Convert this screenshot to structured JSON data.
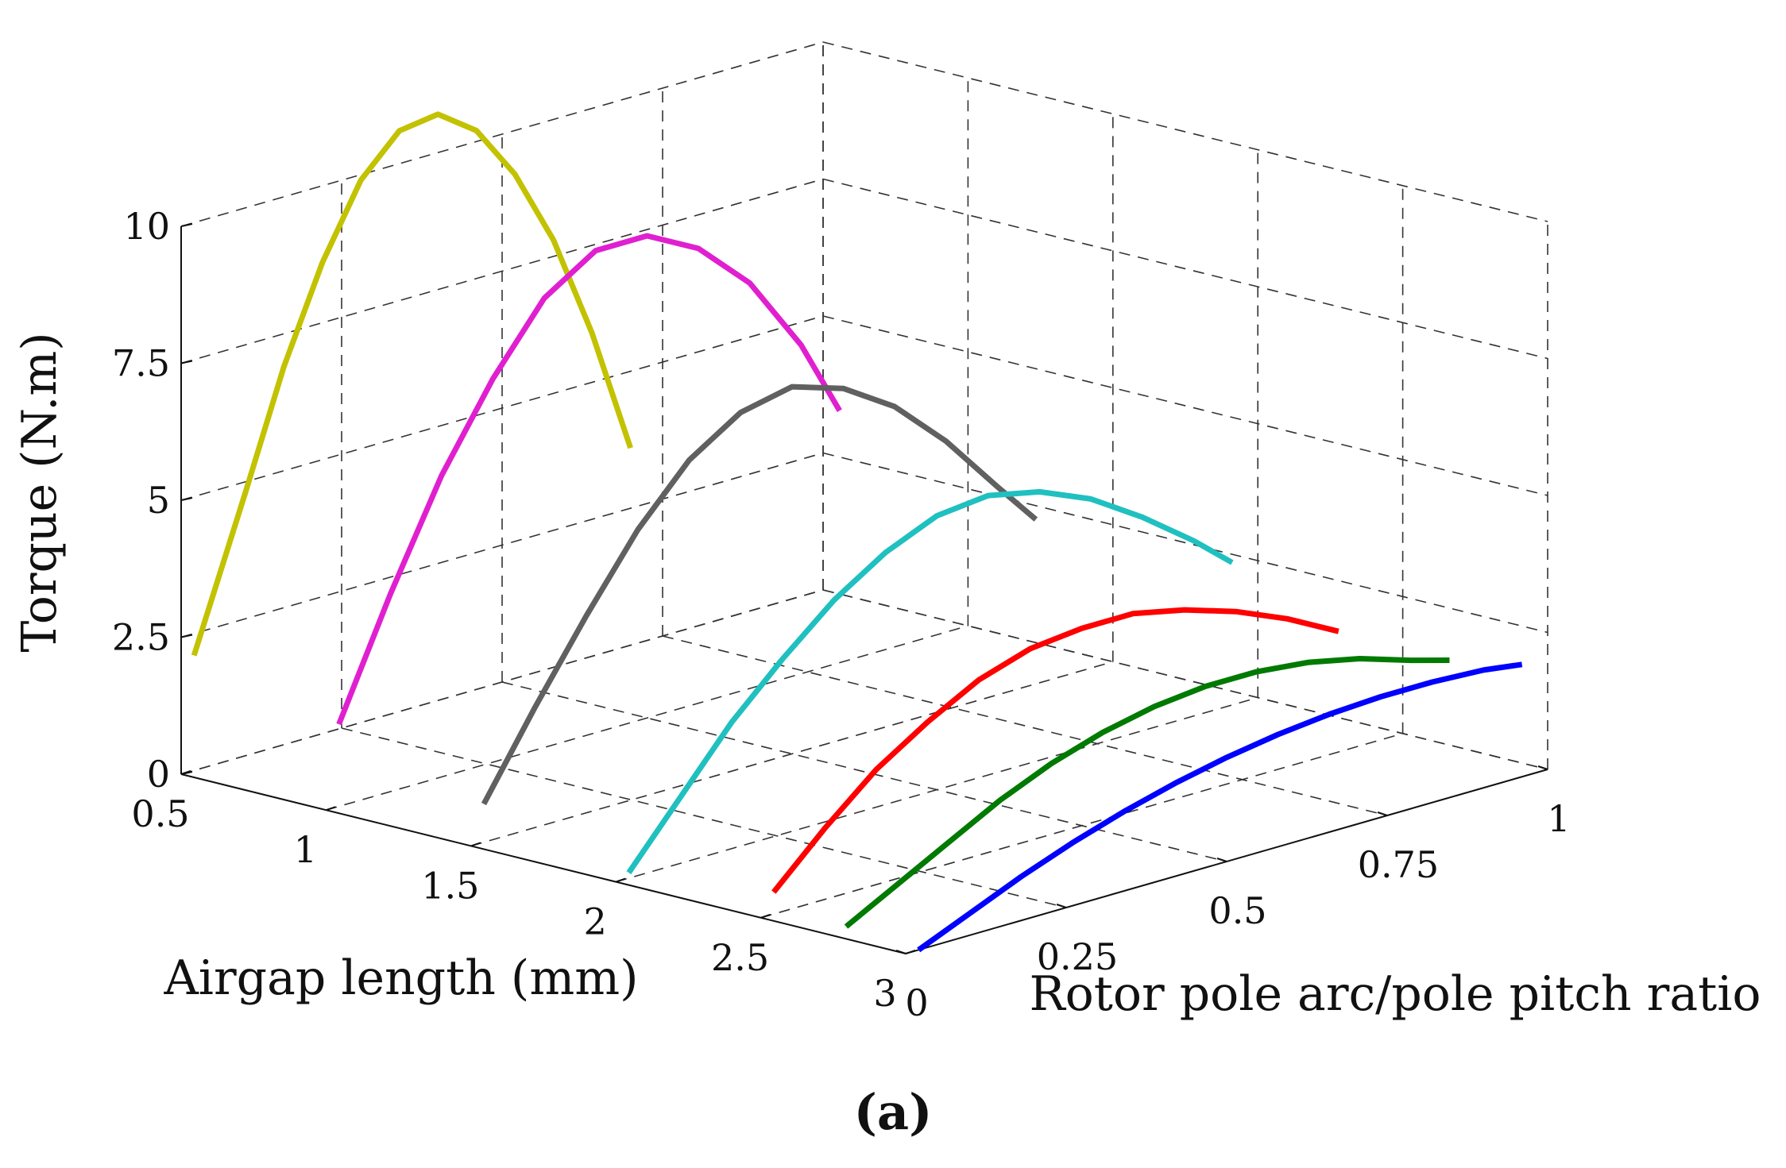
{
  "chart_data": {
    "type": "line3d",
    "panel_label": "(a)",
    "zlabel": "Torque (N.m)",
    "xlabel": "Airgap length (mm)",
    "ylabel": "Rotor pole arc/pole pitch ratio",
    "xlim": [
      0.5,
      3
    ],
    "ylim": [
      0,
      1
    ],
    "zlim": [
      0,
      10
    ],
    "xticks": [
      "0.5",
      "1",
      "1.5",
      "2",
      "2.5",
      "3"
    ],
    "yticks": [
      "0",
      "0.25",
      "0.5",
      "0.75",
      "1"
    ],
    "zticks": [
      "0",
      "2.5",
      "5",
      "7.5",
      "10"
    ],
    "grid": true,
    "series": [
      {
        "name": "yellow",
        "color": "#c2c200",
        "x": 0.5,
        "y": [
          0.02,
          0.1,
          0.16,
          0.22,
          0.28,
          0.34,
          0.4,
          0.46,
          0.52,
          0.58,
          0.64,
          0.7
        ],
        "z": [
          2.1,
          4.8,
          6.9,
          8.6,
          9.9,
          10.6,
          10.7,
          10.2,
          9.2,
          7.8,
          5.9,
          3.6
        ]
      },
      {
        "name": "magenta",
        "color": "#e020d0",
        "x": 1.0,
        "y": [
          0.02,
          0.1,
          0.18,
          0.26,
          0.34,
          0.42,
          0.5,
          0.58,
          0.66,
          0.74,
          0.8
        ],
        "z": [
          1.5,
          3.6,
          5.5,
          7.0,
          8.2,
          8.8,
          8.8,
          8.3,
          7.4,
          6.0,
          4.6
        ]
      },
      {
        "name": "gray",
        "color": "#606060",
        "x": 1.5,
        "y": [
          0.02,
          0.1,
          0.18,
          0.26,
          0.34,
          0.42,
          0.5,
          0.58,
          0.66,
          0.74,
          0.82,
          0.88
        ],
        "z": [
          0.7,
          2.2,
          3.6,
          4.9,
          5.9,
          6.5,
          6.7,
          6.4,
          5.8,
          4.9,
          3.8,
          3.0
        ]
      },
      {
        "name": "cyan",
        "color": "#20c0c0",
        "x": 2.0,
        "y": [
          0.02,
          0.1,
          0.18,
          0.26,
          0.34,
          0.42,
          0.5,
          0.58,
          0.66,
          0.74,
          0.82,
          0.9,
          0.96
        ],
        "z": [
          0.1,
          1.2,
          2.3,
          3.2,
          4.0,
          4.6,
          5.0,
          5.1,
          4.9,
          4.5,
          3.9,
          3.2,
          2.6
        ]
      },
      {
        "name": "red",
        "color": "#ff0000",
        "x": 2.5,
        "y": [
          0.02,
          0.1,
          0.18,
          0.26,
          0.34,
          0.42,
          0.5,
          0.58,
          0.66,
          0.74,
          0.82,
          0.9
        ],
        "z": [
          0.4,
          1.3,
          2.1,
          2.7,
          3.2,
          3.5,
          3.6,
          3.6,
          3.4,
          3.1,
          2.7,
          2.2
        ]
      },
      {
        "name": "green",
        "color": "#007a00",
        "x": 2.75,
        "y": [
          0.02,
          0.1,
          0.18,
          0.26,
          0.34,
          0.42,
          0.5,
          0.58,
          0.66,
          0.74,
          0.82,
          0.9,
          0.96
        ],
        "z": [
          0.1,
          0.6,
          1.1,
          1.6,
          2.0,
          2.3,
          2.5,
          2.6,
          2.6,
          2.5,
          2.3,
          2.0,
          1.8
        ]
      },
      {
        "name": "blue",
        "color": "#0000ff",
        "x": 3.0,
        "y": [
          0.02,
          0.1,
          0.18,
          0.26,
          0.34,
          0.42,
          0.5,
          0.58,
          0.66,
          0.74,
          0.82,
          0.9,
          0.96
        ],
        "z": [
          0.0,
          0.4,
          0.8,
          1.15,
          1.45,
          1.7,
          1.9,
          2.05,
          2.15,
          2.2,
          2.2,
          2.15,
          2.05
        ]
      }
    ]
  }
}
